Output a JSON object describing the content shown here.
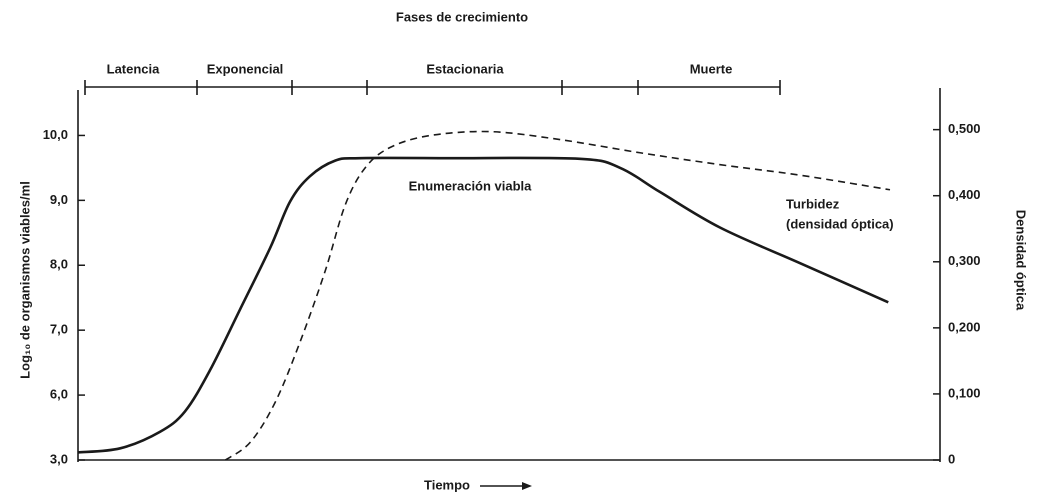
{
  "chart_data": {
    "type": "line",
    "title": "Fases de crecimiento",
    "phases": [
      "Latencia",
      "Exponencial",
      "Estacionaria",
      "Muerte"
    ],
    "x_label": "Tiempo",
    "y_label": "Log₁₀ de organismos viables/ml",
    "y2_label": "Densidad óptica",
    "annotations": [
      "Enumeración viabla",
      "Turbidez",
      "(densidad óptica)"
    ],
    "xlim": [
      0,
      100
    ],
    "ylim": [
      3,
      10.7
    ],
    "ybreak": [
      3,
      6
    ],
    "yticks": [
      {
        "value": 3,
        "label": "3,0"
      },
      {
        "value": 6,
        "label": "6,0"
      },
      {
        "value": 7,
        "label": "7,0"
      },
      {
        "value": 8,
        "label": "8,0"
      },
      {
        "value": 9,
        "label": "9,0"
      },
      {
        "value": 10,
        "label": "10,0"
      }
    ],
    "y2lim": [
      0,
      0.56
    ],
    "y2ticks": [
      0,
      {
        "value": 0.1,
        "label": "0,100"
      },
      {
        "value": 0.2,
        "label": "0,200"
      },
      {
        "value": 0.3,
        "label": "0,300"
      },
      {
        "value": 0.4,
        "label": "0,400"
      },
      {
        "value": 0.5,
        "label": "0,500"
      }
    ],
    "series": [
      {
        "name": "Enumeración viabla",
        "color": "#1a1a1a",
        "dash": "solid",
        "x": [
          0,
          4.9,
          9.5,
          12.4,
          15.3,
          18.8,
          22.3,
          24.6,
          26.9,
          29.8,
          32.7,
          43.2,
          58.2,
          62.9,
          67.5,
          74.5,
          83.8,
          94
        ],
        "values": [
          3.35,
          3.54,
          4.3,
          5.24,
          6.38,
          7.32,
          8.27,
          8.98,
          9.37,
          9.61,
          9.65,
          9.65,
          9.64,
          9.5,
          9.13,
          8.58,
          8.03,
          7.43
        ]
      },
      {
        "name": "Turbidez",
        "color": "#1a1a1a",
        "dash": "dashed",
        "axis": "y2",
        "x": [
          17.1,
          20,
          22.9,
          25.8,
          28.7,
          31,
          33.3,
          36.2,
          40.8,
          47.8,
          55.9,
          65.2,
          74.5,
          83.8,
          94.2
        ],
        "values": [
          0,
          0.027,
          0.088,
          0.18,
          0.287,
          0.386,
          0.442,
          0.473,
          0.491,
          0.497,
          0.485,
          0.465,
          0.447,
          0.431,
          0.409
        ]
      }
    ]
  }
}
